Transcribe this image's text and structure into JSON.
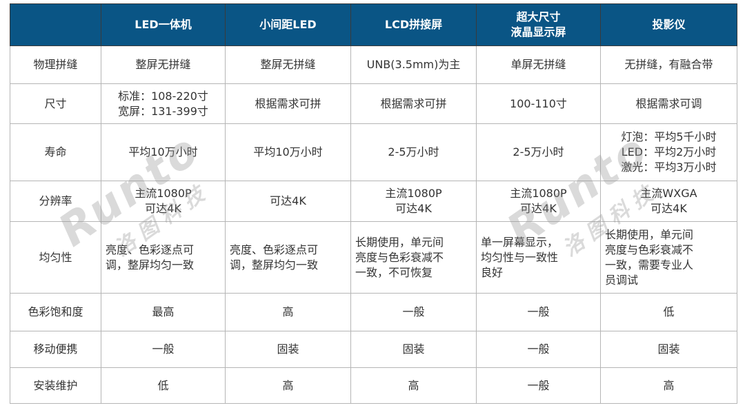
{
  "header": [
    "",
    "LED一体机",
    "小间距LED",
    "LCD拼接屏",
    [
      "超大尺寸",
      "液晶显示屏"
    ],
    "投影仪"
  ],
  "rows": [
    {
      "label": "物理拼缝",
      "cells": [
        [
          "整屏无拼缝"
        ],
        [
          "整屏无拼缝"
        ],
        [
          "UNB(3.5mm)为主"
        ],
        [
          "单屏无拼缝"
        ],
        [
          "无拼缝，有融合带"
        ]
      ]
    },
    {
      "label": "尺寸",
      "cells": [
        [
          "标准：108-220寸",
          "宽屏：131-399寸"
        ],
        [
          "根据需求可拼"
        ],
        [
          "根据需求可拼"
        ],
        [
          "100-110寸"
        ],
        [
          "根据需求可调"
        ]
      ]
    },
    {
      "label": "寿命",
      "cells": [
        [
          "平均10万小时"
        ],
        [
          "平均10万小时"
        ],
        [
          "2-5万小时"
        ],
        [
          "2-5万小时"
        ],
        [
          "灯泡：平均5千小时",
          "LED：平均2万小时",
          "激光：平均3万小时"
        ]
      ]
    },
    {
      "label": "分辨率",
      "cells": [
        [
          "主流1080P",
          "可达4K"
        ],
        [
          "可达4K"
        ],
        [
          "主流1080P",
          "可达4K"
        ],
        [
          "主流1080P",
          "可达4K"
        ],
        [
          "主流WXGA",
          "可达4K"
        ]
      ]
    },
    {
      "label": "均匀性",
      "align": "left",
      "cells": [
        [
          "亮度、色彩逐点可",
          "调，整屏均匀一致"
        ],
        [
          "亮度、色彩逐点可",
          "调，整屏均匀一致"
        ],
        [
          "长期使用，单元间",
          "亮度与色彩衰减不",
          "一致，不可恢复"
        ],
        [
          "单一屏幕显示，",
          "均匀性与一致性",
          "良好"
        ],
        [
          "长期使用，单元间",
          "亮度与色彩衰减不",
          "一致，需要专业人",
          "员调试"
        ]
      ]
    },
    {
      "label": "色彩饱和度",
      "cells": [
        [
          "最高"
        ],
        [
          "高"
        ],
        [
          "一般"
        ],
        [
          "一般"
        ],
        [
          "低"
        ]
      ]
    },
    {
      "label": "移动便携",
      "cells": [
        [
          "一般"
        ],
        [
          "固装"
        ],
        [
          "固装"
        ],
        [
          "一般"
        ],
        [
          "固装"
        ]
      ]
    },
    {
      "label": "安装维护",
      "cells": [
        [
          "低"
        ],
        [
          "高"
        ],
        [
          "高"
        ],
        [
          "一般"
        ],
        [
          "高"
        ]
      ]
    }
  ],
  "watermark": {
    "brand": "Runto",
    "cn": "洛图科技"
  },
  "colors": {
    "header_bg": "#0a5585",
    "header_text": "#ffffff",
    "border": "#b5b5b5"
  }
}
